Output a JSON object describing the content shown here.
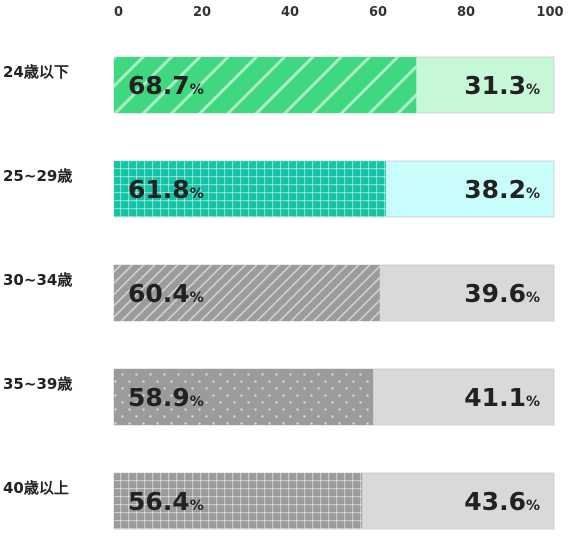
{
  "chart_data": {
    "type": "bar",
    "orientation": "horizontal",
    "stacked": true,
    "normalized_to": 100,
    "xlim": [
      0,
      100
    ],
    "x_ticks": [
      "0",
      "20",
      "40",
      "60",
      "80",
      "100"
    ],
    "categories": [
      "24歳以下",
      "25~29歳",
      "30~34歳",
      "35~39歳",
      "40歳以上"
    ],
    "series": [
      {
        "values": [
          68.7,
          61.8,
          60.4,
          58.9,
          56.4
        ]
      },
      {
        "values": [
          31.3,
          38.2,
          39.6,
          41.1,
          43.6
        ]
      }
    ],
    "value_labels": {
      "series0": [
        "68.7",
        "61.8",
        "60.4",
        "58.9",
        "56.4"
      ],
      "series1": [
        "31.3",
        "38.2",
        "39.6",
        "41.1",
        "43.6"
      ]
    },
    "unit": "%",
    "colors": {
      "row1_main": "#3fd880",
      "row1_rest": "#c6f7d6",
      "row2_main": "#13c4a6",
      "row2_rest": "#c9fdfb",
      "rows_main": "#9b9b9b",
      "rows_rest": "#d9d9d9",
      "stroke": "#cccccc"
    },
    "patterns": [
      "diagonal-stripes",
      "grid",
      "diagonal-stripes-fine",
      "dots",
      "grid"
    ],
    "grid": false,
    "legend": "none"
  }
}
